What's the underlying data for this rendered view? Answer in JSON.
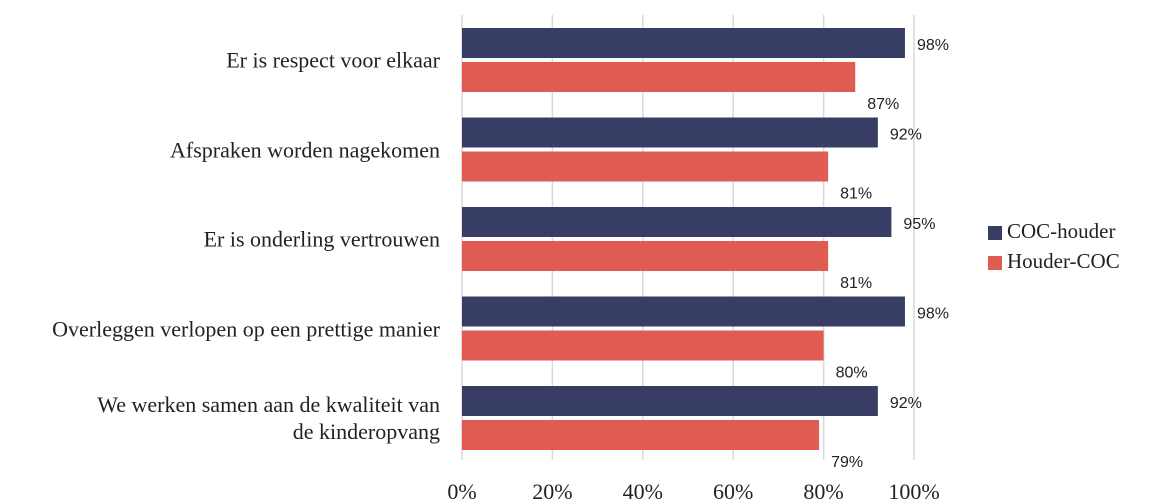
{
  "chart_data": {
    "type": "hbar",
    "categories": [
      "Er is respect voor elkaar",
      "Afspraken worden nagekomen",
      "Er is onderling vertrouwen",
      "Overleggen verlopen op een prettige manier",
      "We werken samen aan de kwaliteit van de kinderopvang"
    ],
    "series": [
      {
        "name": "COC-houder",
        "color": "#383d66",
        "values": [
          98,
          92,
          95,
          98,
          92
        ],
        "value_labels": [
          "98%",
          "92%",
          "95%",
          "98%",
          "92%"
        ]
      },
      {
        "name": "Houder-COC",
        "color": "#e05c52",
        "values": [
          87,
          81,
          81,
          80,
          79
        ],
        "value_labels": [
          "87%",
          "81%",
          "81%",
          "80%",
          "79%"
        ]
      }
    ],
    "xlim": [
      0,
      100
    ],
    "xticks": [
      {
        "value": 0,
        "label": "0%"
      },
      {
        "value": 20,
        "label": "20%"
      },
      {
        "value": 40,
        "label": "40%"
      },
      {
        "value": 60,
        "label": "60%"
      },
      {
        "value": 80,
        "label": "80%"
      },
      {
        "value": 100,
        "label": "100%"
      }
    ],
    "grid": true,
    "legend": "right"
  }
}
